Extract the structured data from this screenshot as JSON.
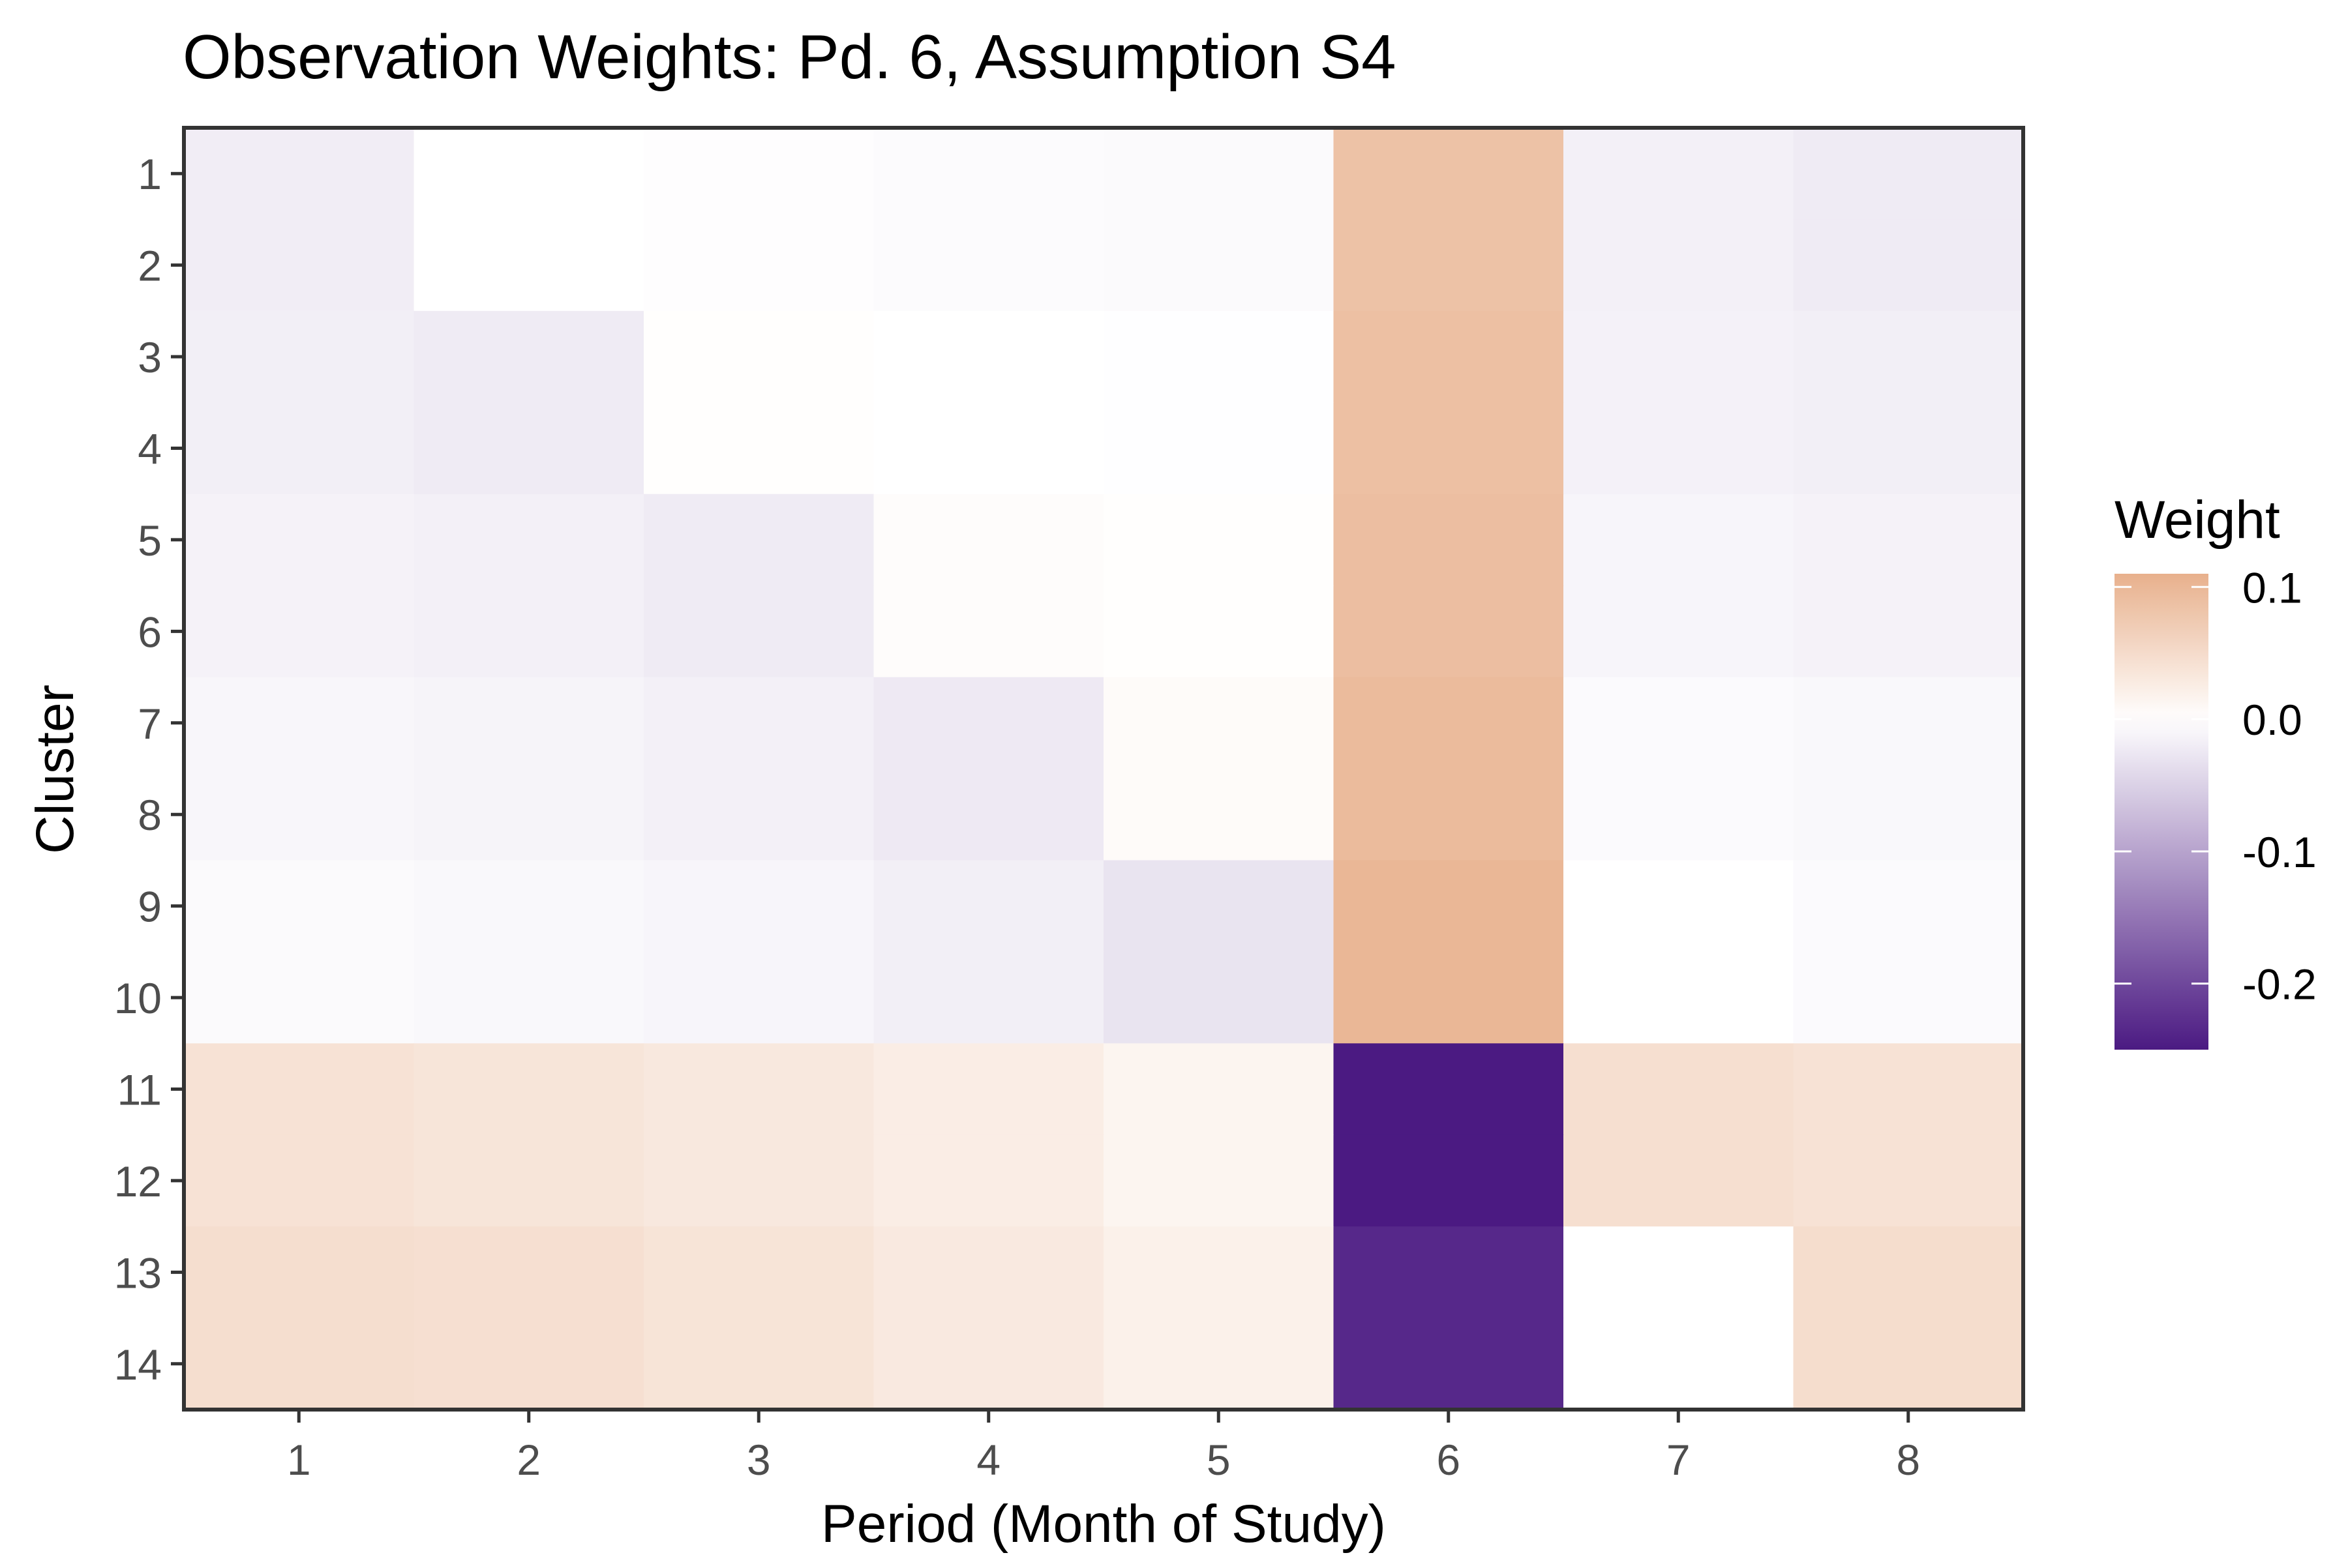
{
  "chart_data": {
    "type": "heatmap",
    "title": "Observation Weights: Pd. 6, Assumption S4",
    "xlabel": "Period (Month of Study)",
    "ylabel": "Cluster",
    "x_categories": [
      "1",
      "2",
      "3",
      "4",
      "5",
      "6",
      "7",
      "8"
    ],
    "y_categories": [
      "1",
      "2",
      "3",
      "4",
      "5",
      "6",
      "7",
      "8",
      "9",
      "10",
      "11",
      "12",
      "13",
      "14"
    ],
    "rows": [
      {
        "cluster": "1",
        "values": [
          -0.02,
          0.0,
          -0.002,
          -0.004,
          -0.006,
          0.085,
          -0.016,
          -0.022
        ]
      },
      {
        "cluster": "2",
        "values": [
          -0.02,
          0.0,
          -0.002,
          -0.004,
          -0.006,
          0.085,
          -0.016,
          -0.022
        ]
      },
      {
        "cluster": "3",
        "values": [
          -0.018,
          -0.022,
          0.002,
          0.0,
          -0.001,
          0.088,
          -0.015,
          -0.018
        ]
      },
      {
        "cluster": "4",
        "values": [
          -0.018,
          -0.022,
          0.002,
          0.0,
          -0.001,
          0.088,
          -0.015,
          -0.018
        ]
      },
      {
        "cluster": "5",
        "values": [
          -0.014,
          -0.016,
          -0.022,
          0.004,
          0.002,
          0.09,
          -0.011,
          -0.014
        ]
      },
      {
        "cluster": "6",
        "values": [
          -0.014,
          -0.016,
          -0.022,
          0.004,
          0.002,
          0.09,
          -0.011,
          -0.014
        ]
      },
      {
        "cluster": "7",
        "values": [
          -0.01,
          -0.012,
          -0.016,
          -0.024,
          0.006,
          0.095,
          -0.005,
          -0.008
        ]
      },
      {
        "cluster": "8",
        "values": [
          -0.01,
          -0.012,
          -0.016,
          -0.024,
          0.006,
          0.095,
          -0.005,
          -0.008
        ]
      },
      {
        "cluster": "9",
        "values": [
          -0.006,
          -0.008,
          -0.011,
          -0.018,
          -0.03,
          0.1,
          0.0,
          -0.005
        ]
      },
      {
        "cluster": "10",
        "values": [
          -0.006,
          -0.008,
          -0.011,
          -0.018,
          -0.03,
          0.1,
          0.0,
          -0.005
        ]
      },
      {
        "cluster": "11",
        "values": [
          0.04,
          0.036,
          0.032,
          0.025,
          0.014,
          -0.25,
          0.045,
          0.04
        ]
      },
      {
        "cluster": "12",
        "values": [
          0.04,
          0.036,
          0.032,
          0.025,
          0.014,
          -0.25,
          0.045,
          0.04
        ]
      },
      {
        "cluster": "13",
        "values": [
          0.046,
          0.044,
          0.038,
          0.03,
          0.02,
          -0.235,
          0.0,
          0.048
        ]
      },
      {
        "cluster": "14",
        "values": [
          0.046,
          0.044,
          0.038,
          0.03,
          0.02,
          -0.235,
          0.0,
          0.048
        ]
      }
    ],
    "legend": {
      "title": "Weight",
      "ticks": [
        0.1,
        0.0,
        -0.1,
        -0.2
      ],
      "tick_labels": [
        "0.1",
        "0.0",
        "-0.1",
        "-0.2"
      ],
      "range": [
        -0.25,
        0.11
      ],
      "position": "right"
    },
    "colors": {
      "high": "#e8b08c",
      "mid": "#ffffff",
      "low": "#4b1a82"
    },
    "grid": false
  }
}
